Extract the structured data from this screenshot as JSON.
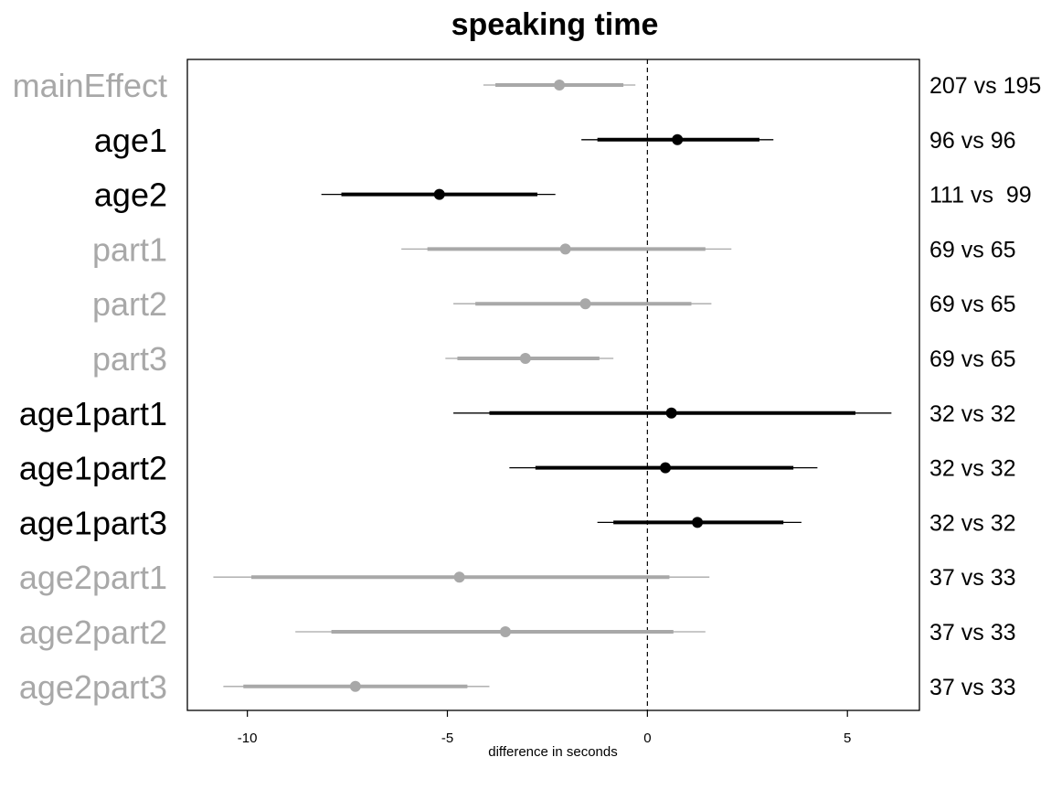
{
  "chart_data": {
    "type": "forest",
    "title": "speaking time",
    "xlabel": "difference in seconds",
    "xlim": [
      -11.5,
      6.8
    ],
    "x_ticks": [
      -10,
      -5,
      0,
      5
    ],
    "x_tick_labels": [
      "-10",
      "-5",
      "0",
      "5"
    ],
    "reference_line": 0,
    "colors": {
      "significant": "#000000",
      "not_significant": "#a8a8a8"
    },
    "rows": [
      {
        "label": "mainEffect",
        "counts": "207 vs 195",
        "significant": false,
        "estimate": -2.2,
        "inner": [
          -3.8,
          -0.6
        ],
        "outer": [
          -4.1,
          -0.3
        ]
      },
      {
        "label": "age1",
        "counts": "96 vs 96",
        "significant": true,
        "estimate": 0.75,
        "inner": [
          -1.25,
          2.8
        ],
        "outer": [
          -1.65,
          3.15
        ]
      },
      {
        "label": "age2",
        "counts": "111 vs  99",
        "significant": true,
        "estimate": -5.2,
        "inner": [
          -7.65,
          -2.75
        ],
        "outer": [
          -8.15,
          -2.3
        ]
      },
      {
        "label": "part1",
        "counts": "69 vs 65",
        "significant": false,
        "estimate": -2.05,
        "inner": [
          -5.5,
          1.45
        ],
        "outer": [
          -6.15,
          2.1
        ]
      },
      {
        "label": "part2",
        "counts": "69 vs 65",
        "significant": false,
        "estimate": -1.55,
        "inner": [
          -4.3,
          1.1
        ],
        "outer": [
          -4.85,
          1.6
        ]
      },
      {
        "label": "part3",
        "counts": "69 vs 65",
        "significant": false,
        "estimate": -3.05,
        "inner": [
          -4.75,
          -1.2
        ],
        "outer": [
          -5.05,
          -0.85
        ]
      },
      {
        "label": "age1part1",
        "counts": "32 vs 32",
        "significant": true,
        "estimate": 0.6,
        "inner": [
          -3.95,
          5.2
        ],
        "outer": [
          -4.85,
          6.1
        ]
      },
      {
        "label": "age1part2",
        "counts": "32 vs 32",
        "significant": true,
        "estimate": 0.45,
        "inner": [
          -2.8,
          3.65
        ],
        "outer": [
          -3.45,
          4.25
        ]
      },
      {
        "label": "age1part3",
        "counts": "32 vs 32",
        "significant": true,
        "estimate": 1.25,
        "inner": [
          -0.85,
          3.4
        ],
        "outer": [
          -1.25,
          3.85
        ]
      },
      {
        "label": "age2part1",
        "counts": "37 vs 33",
        "significant": false,
        "estimate": -4.7,
        "inner": [
          -9.9,
          0.55
        ],
        "outer": [
          -10.85,
          1.55
        ]
      },
      {
        "label": "age2part2",
        "counts": "37 vs 33",
        "significant": false,
        "estimate": -3.55,
        "inner": [
          -7.9,
          0.65
        ],
        "outer": [
          -8.8,
          1.45
        ]
      },
      {
        "label": "age2part3",
        "counts": "37 vs 33",
        "significant": false,
        "estimate": -7.3,
        "inner": [
          -10.1,
          -4.5
        ],
        "outer": [
          -10.6,
          -3.95
        ]
      }
    ]
  }
}
